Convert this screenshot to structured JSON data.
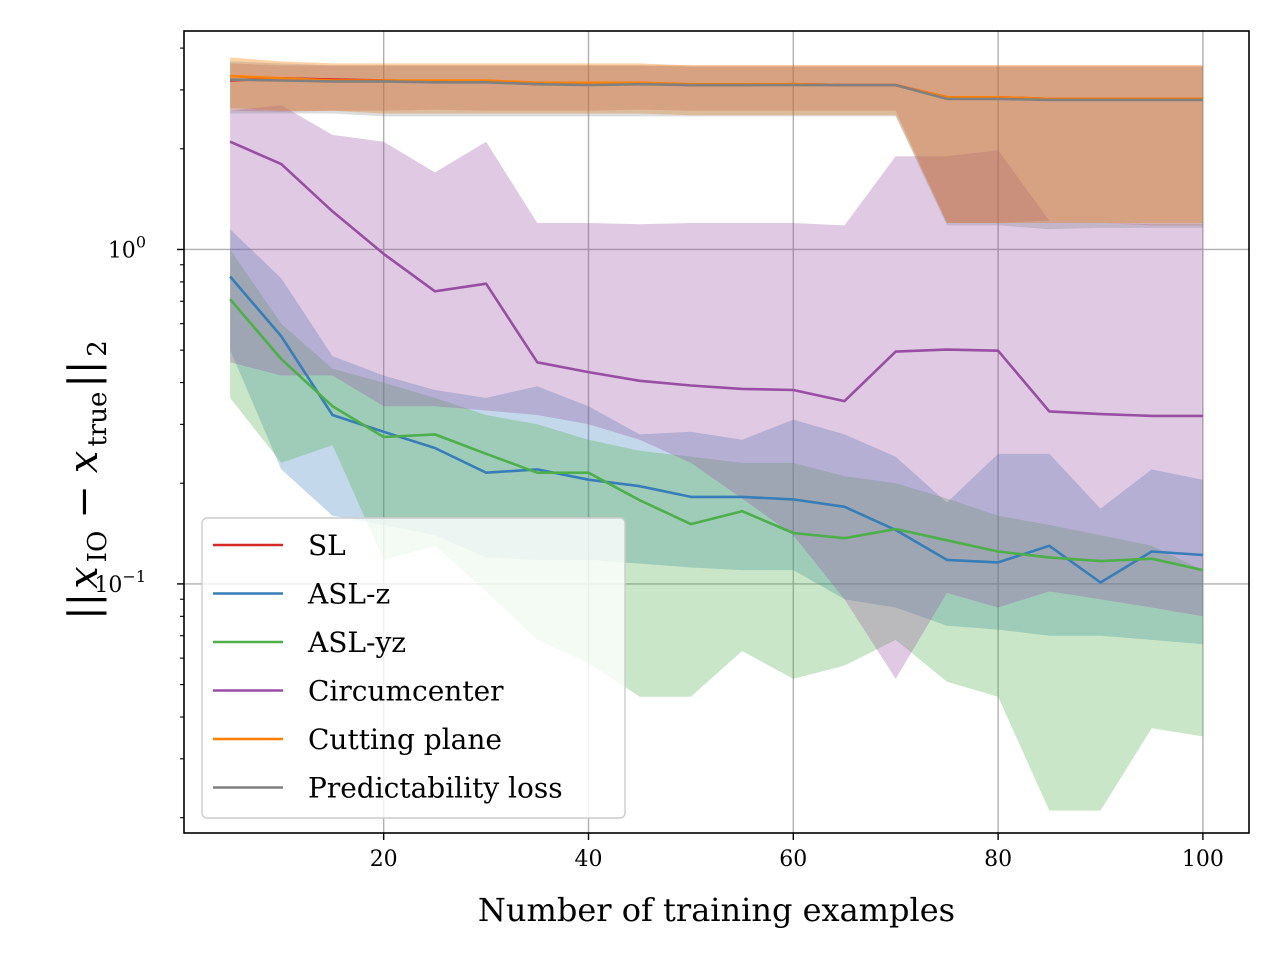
{
  "chart_data": {
    "type": "line",
    "title": "",
    "xlabel": "Number of training examples",
    "ylabel": {
      "norm_bars": "||",
      "var1": "x",
      "sub1": "IO",
      "minus": "−",
      "var2": "x",
      "sub2": "true",
      "norm_sub": "2"
    },
    "xlim": [
      0.5,
      104.5
    ],
    "ylim": [
      0.018,
      4.5
    ],
    "yscale": "log",
    "xticks": [
      20,
      40,
      60,
      80,
      100
    ],
    "yticks": [
      {
        "value": 1.0,
        "label_base": "10",
        "label_exp": "0"
      },
      {
        "value": 0.1,
        "label_base": "10",
        "label_exp": "−1"
      }
    ],
    "grid": true,
    "legend_position": "lower-left",
    "x": [
      5,
      10,
      15,
      20,
      25,
      30,
      35,
      40,
      45,
      50,
      55,
      60,
      65,
      70,
      75,
      80,
      85,
      90,
      95,
      100
    ],
    "series": [
      {
        "name": "SL",
        "color": "#d62728",
        "values": [
          3.2,
          3.25,
          3.22,
          3.2,
          3.18,
          3.18,
          3.12,
          3.12,
          3.15,
          3.1,
          3.1,
          3.12,
          3.1,
          3.1,
          2.85,
          2.85,
          2.82,
          2.82,
          2.82,
          2.82
        ],
        "lower": [
          2.6,
          2.58,
          2.6,
          2.6,
          2.62,
          2.6,
          2.6,
          2.6,
          2.62,
          2.6,
          2.6,
          2.6,
          2.6,
          2.6,
          1.2,
          1.2,
          1.22,
          1.2,
          1.18,
          1.18
        ],
        "upper": [
          3.6,
          3.55,
          3.55,
          3.55,
          3.55,
          3.55,
          3.55,
          3.55,
          3.55,
          3.55,
          3.55,
          3.55,
          3.55,
          3.55,
          3.55,
          3.55,
          3.55,
          3.55,
          3.55,
          3.55
        ]
      },
      {
        "name": "ASL-z",
        "color": "#377eb8",
        "values": [
          0.83,
          0.55,
          0.32,
          0.285,
          0.255,
          0.215,
          0.22,
          0.205,
          0.196,
          0.182,
          0.182,
          0.179,
          0.17,
          0.145,
          0.118,
          0.116,
          0.13,
          0.101,
          0.125,
          0.122
        ],
        "lower": [
          0.5,
          0.22,
          0.16,
          0.15,
          0.14,
          0.12,
          0.118,
          0.118,
          0.115,
          0.112,
          0.11,
          0.11,
          0.09,
          0.085,
          0.075,
          0.073,
          0.07,
          0.07,
          0.068,
          0.066
        ],
        "upper": [
          1.15,
          0.82,
          0.48,
          0.42,
          0.38,
          0.36,
          0.39,
          0.34,
          0.28,
          0.285,
          0.27,
          0.31,
          0.28,
          0.24,
          0.175,
          0.245,
          0.245,
          0.168,
          0.22,
          0.205
        ]
      },
      {
        "name": "ASL-yz",
        "color": "#4daf4a",
        "values": [
          0.71,
          0.47,
          0.34,
          0.275,
          0.28,
          0.245,
          0.215,
          0.215,
          0.178,
          0.151,
          0.165,
          0.142,
          0.137,
          0.146,
          0.135,
          0.125,
          0.12,
          0.117,
          0.119,
          0.11
        ],
        "lower": [
          0.36,
          0.23,
          0.26,
          0.118,
          0.13,
          0.095,
          0.068,
          0.058,
          0.046,
          0.046,
          0.063,
          0.052,
          0.057,
          0.068,
          0.051,
          0.046,
          0.021,
          0.021,
          0.037,
          0.035
        ],
        "upper": [
          1.0,
          0.6,
          0.44,
          0.4,
          0.36,
          0.32,
          0.3,
          0.27,
          0.25,
          0.24,
          0.23,
          0.23,
          0.21,
          0.2,
          0.18,
          0.16,
          0.15,
          0.14,
          0.13,
          0.11
        ]
      },
      {
        "name": "Circumcenter",
        "color": "#984ea3",
        "values": [
          2.1,
          1.8,
          1.3,
          0.97,
          0.75,
          0.79,
          0.46,
          0.43,
          0.405,
          0.392,
          0.383,
          0.38,
          0.352,
          0.495,
          0.502,
          0.498,
          0.328,
          0.322,
          0.318,
          0.318
        ],
        "lower": [
          0.46,
          0.42,
          0.42,
          0.34,
          0.34,
          0.33,
          0.32,
          0.3,
          0.27,
          0.23,
          0.18,
          0.14,
          0.09,
          0.052,
          0.094,
          0.085,
          0.095,
          0.09,
          0.085,
          0.08
        ],
        "upper": [
          2.6,
          2.7,
          2.2,
          2.1,
          1.7,
          2.1,
          1.2,
          1.2,
          1.19,
          1.2,
          1.2,
          1.2,
          1.18,
          1.9,
          1.9,
          1.98,
          1.22,
          1.2,
          1.19,
          1.19
        ]
      },
      {
        "name": "Cutting plane",
        "color": "#ff7f00",
        "values": [
          3.3,
          3.25,
          3.2,
          3.2,
          3.2,
          3.2,
          3.15,
          3.15,
          3.15,
          3.12,
          3.12,
          3.12,
          3.1,
          3.1,
          2.85,
          2.85,
          2.82,
          2.82,
          2.82,
          2.82
        ],
        "lower": [
          2.65,
          2.6,
          2.6,
          2.55,
          2.55,
          2.55,
          2.55,
          2.55,
          2.55,
          2.52,
          2.52,
          2.52,
          2.52,
          2.52,
          1.2,
          1.2,
          1.2,
          1.2,
          1.2,
          1.2
        ],
        "upper": [
          3.75,
          3.65,
          3.6,
          3.6,
          3.6,
          3.6,
          3.6,
          3.6,
          3.6,
          3.55,
          3.55,
          3.55,
          3.55,
          3.55,
          3.55,
          3.55,
          3.55,
          3.55,
          3.55,
          3.55
        ]
      },
      {
        "name": "Predictability loss",
        "color": "#808080",
        "values": [
          3.22,
          3.2,
          3.18,
          3.18,
          3.16,
          3.16,
          3.12,
          3.1,
          3.12,
          3.1,
          3.1,
          3.1,
          3.1,
          3.1,
          2.82,
          2.82,
          2.8,
          2.8,
          2.8,
          2.8
        ],
        "lower": [
          2.55,
          2.55,
          2.55,
          2.5,
          2.5,
          2.5,
          2.5,
          2.5,
          2.5,
          2.5,
          2.5,
          2.5,
          2.5,
          2.5,
          1.18,
          1.18,
          1.15,
          1.16,
          1.16,
          1.16
        ],
        "upper": [
          3.65,
          3.6,
          3.55,
          3.55,
          3.55,
          3.55,
          3.55,
          3.55,
          3.55,
          3.52,
          3.52,
          3.52,
          3.52,
          3.52,
          3.52,
          3.52,
          3.52,
          3.52,
          3.52,
          3.52
        ]
      }
    ],
    "band_alphas": {
      "SL": 0.25,
      "ASL-z": 0.3,
      "ASL-yz": 0.3,
      "Circumcenter": 0.3,
      "Cutting plane": 0.35,
      "Predictability loss": 0.28
    }
  }
}
